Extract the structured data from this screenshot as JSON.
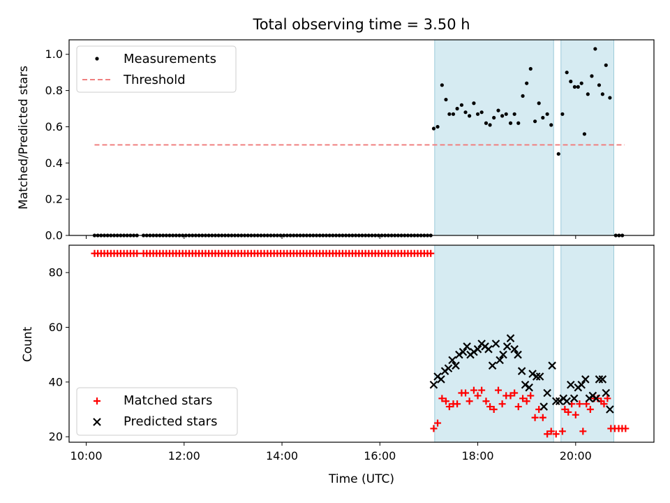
{
  "title": "Total observing time = 3.50 h",
  "chart_data": [
    {
      "type": "scatter",
      "panel": "top",
      "ylabel": "Matched/Predicted stars",
      "ylim": [
        0,
        1.08
      ],
      "yticks": [
        0.0,
        0.2,
        0.4,
        0.6,
        0.8,
        1.0
      ],
      "ytick_labels": [
        "0.0",
        "0.2",
        "0.4",
        "0.6",
        "0.8",
        "1.0"
      ],
      "xlim": [
        9.65,
        21.6
      ],
      "legend": {
        "placement": "upper-left",
        "entries": [
          "Measurements",
          "Threshold"
        ]
      },
      "shaded_intervals": [
        [
          17.12,
          19.55
        ],
        [
          19.7,
          20.78
        ]
      ],
      "threshold": {
        "name": "Threshold",
        "value": 0.5,
        "x_range": [
          10.17,
          21.0
        ],
        "color": "#f08080"
      },
      "series": [
        {
          "name": "Measurements",
          "color": "#000000",
          "zero_segments": [
            [
              10.17,
              11.1,
              0.0667
            ],
            [
              11.17,
              17.07,
              0.0667
            ],
            [
              20.82,
              20.98,
              0.0667
            ]
          ],
          "points": [
            [
              17.1,
              0.59
            ],
            [
              17.18,
              0.6
            ],
            [
              17.27,
              0.83
            ],
            [
              17.35,
              0.75
            ],
            [
              17.42,
              0.67
            ],
            [
              17.5,
              0.67
            ],
            [
              17.58,
              0.7
            ],
            [
              17.67,
              0.72
            ],
            [
              17.75,
              0.68
            ],
            [
              17.83,
              0.66
            ],
            [
              17.92,
              0.73
            ],
            [
              18.0,
              0.67
            ],
            [
              18.08,
              0.68
            ],
            [
              18.17,
              0.62
            ],
            [
              18.25,
              0.61
            ],
            [
              18.33,
              0.65
            ],
            [
              18.42,
              0.69
            ],
            [
              18.5,
              0.66
            ],
            [
              18.58,
              0.67
            ],
            [
              18.67,
              0.62
            ],
            [
              18.75,
              0.67
            ],
            [
              18.83,
              0.62
            ],
            [
              18.92,
              0.77
            ],
            [
              19.0,
              0.84
            ],
            [
              19.08,
              0.92
            ],
            [
              19.17,
              0.63
            ],
            [
              19.25,
              0.73
            ],
            [
              19.33,
              0.65
            ],
            [
              19.42,
              0.67
            ],
            [
              19.5,
              0.61
            ],
            [
              19.65,
              0.45
            ],
            [
              19.73,
              0.67
            ],
            [
              19.82,
              0.9
            ],
            [
              19.9,
              0.85
            ],
            [
              19.98,
              0.82
            ],
            [
              20.05,
              0.82
            ],
            [
              20.12,
              0.84
            ],
            [
              20.18,
              0.56
            ],
            [
              20.25,
              0.78
            ],
            [
              20.33,
              0.88
            ],
            [
              20.4,
              1.03
            ],
            [
              20.48,
              0.83
            ],
            [
              20.55,
              0.78
            ],
            [
              20.62,
              0.94
            ],
            [
              20.7,
              0.76
            ]
          ]
        }
      ]
    },
    {
      "type": "scatter",
      "panel": "bottom",
      "xlabel": "Time (UTC)",
      "ylabel": "Count",
      "ylim": [
        18,
        90
      ],
      "yticks": [
        20,
        40,
        60,
        80
      ],
      "ytick_labels": [
        "20",
        "40",
        "60",
        "80"
      ],
      "xlim": [
        9.65,
        21.6
      ],
      "xticks": [
        10,
        12,
        14,
        16,
        18,
        20
      ],
      "xtick_labels": [
        "10:00",
        "12:00",
        "14:00",
        "16:00",
        "18:00",
        "20:00"
      ],
      "legend": {
        "placement": "lower-left",
        "entries": [
          "Matched stars",
          "Predicted stars"
        ]
      },
      "shaded_intervals": [
        [
          17.12,
          19.55
        ],
        [
          19.7,
          20.78
        ]
      ],
      "series": [
        {
          "name": "Matched stars",
          "color": "#ff0000",
          "marker": "plus",
          "constant_segments": [
            [
              10.17,
              11.1,
              0.0667,
              87
            ],
            [
              11.17,
              17.07,
              0.0667,
              87
            ]
          ],
          "points": [
            [
              17.1,
              23
            ],
            [
              17.18,
              25
            ],
            [
              17.27,
              34
            ],
            [
              17.35,
              33
            ],
            [
              17.42,
              31
            ],
            [
              17.5,
              32
            ],
            [
              17.58,
              32
            ],
            [
              17.67,
              36
            ],
            [
              17.75,
              36
            ],
            [
              17.83,
              33
            ],
            [
              17.92,
              37
            ],
            [
              18.0,
              35
            ],
            [
              18.08,
              37
            ],
            [
              18.17,
              33
            ],
            [
              18.25,
              31
            ],
            [
              18.33,
              30
            ],
            [
              18.42,
              37
            ],
            [
              18.5,
              32
            ],
            [
              18.58,
              35
            ],
            [
              18.67,
              35
            ],
            [
              18.75,
              36
            ],
            [
              18.83,
              31
            ],
            [
              18.92,
              34
            ],
            [
              19.0,
              33
            ],
            [
              19.08,
              35
            ],
            [
              19.17,
              27
            ],
            [
              19.25,
              30
            ],
            [
              19.33,
              27
            ],
            [
              19.42,
              21
            ],
            [
              19.5,
              22
            ],
            [
              19.6,
              21
            ],
            [
              19.73,
              22
            ],
            [
              19.78,
              30
            ],
            [
              19.85,
              29
            ],
            [
              19.92,
              32
            ],
            [
              20.0,
              28
            ],
            [
              20.08,
              32
            ],
            [
              20.15,
              22
            ],
            [
              20.22,
              32
            ],
            [
              20.3,
              30
            ],
            [
              20.38,
              34
            ],
            [
              20.45,
              34
            ],
            [
              20.52,
              33
            ],
            [
              20.58,
              32
            ],
            [
              20.65,
              34
            ],
            [
              20.72,
              23
            ],
            [
              20.8,
              23
            ],
            [
              20.88,
              23
            ],
            [
              20.95,
              23
            ],
            [
              21.02,
              23
            ]
          ]
        },
        {
          "name": "Predicted stars",
          "color": "#000000",
          "marker": "x",
          "points": [
            [
              17.1,
              39
            ],
            [
              17.18,
              42
            ],
            [
              17.25,
              41
            ],
            [
              17.33,
              44
            ],
            [
              17.4,
              45
            ],
            [
              17.48,
              48
            ],
            [
              17.55,
              46
            ],
            [
              17.62,
              50
            ],
            [
              17.7,
              51
            ],
            [
              17.78,
              53
            ],
            [
              17.85,
              50
            ],
            [
              17.92,
              51
            ],
            [
              18.0,
              52
            ],
            [
              18.08,
              54
            ],
            [
              18.15,
              53
            ],
            [
              18.22,
              52
            ],
            [
              18.3,
              46
            ],
            [
              18.37,
              54
            ],
            [
              18.45,
              48
            ],
            [
              18.52,
              50
            ],
            [
              18.6,
              53
            ],
            [
              18.67,
              56
            ],
            [
              18.75,
              52
            ],
            [
              18.82,
              50
            ],
            [
              18.9,
              44
            ],
            [
              18.97,
              39
            ],
            [
              19.05,
              38
            ],
            [
              19.12,
              43
            ],
            [
              19.2,
              42
            ],
            [
              19.27,
              42
            ],
            [
              19.35,
              31
            ],
            [
              19.42,
              36
            ],
            [
              19.52,
              46
            ],
            [
              19.6,
              33
            ],
            [
              19.67,
              33
            ],
            [
              19.75,
              34
            ],
            [
              19.82,
              33
            ],
            [
              19.9,
              39
            ],
            [
              19.97,
              34
            ],
            [
              20.05,
              38
            ],
            [
              20.12,
              39
            ],
            [
              20.2,
              41
            ],
            [
              20.28,
              34
            ],
            [
              20.35,
              35
            ],
            [
              20.42,
              34
            ],
            [
              20.48,
              41
            ],
            [
              20.55,
              41
            ],
            [
              20.62,
              36
            ],
            [
              20.7,
              30
            ]
          ]
        }
      ]
    }
  ]
}
